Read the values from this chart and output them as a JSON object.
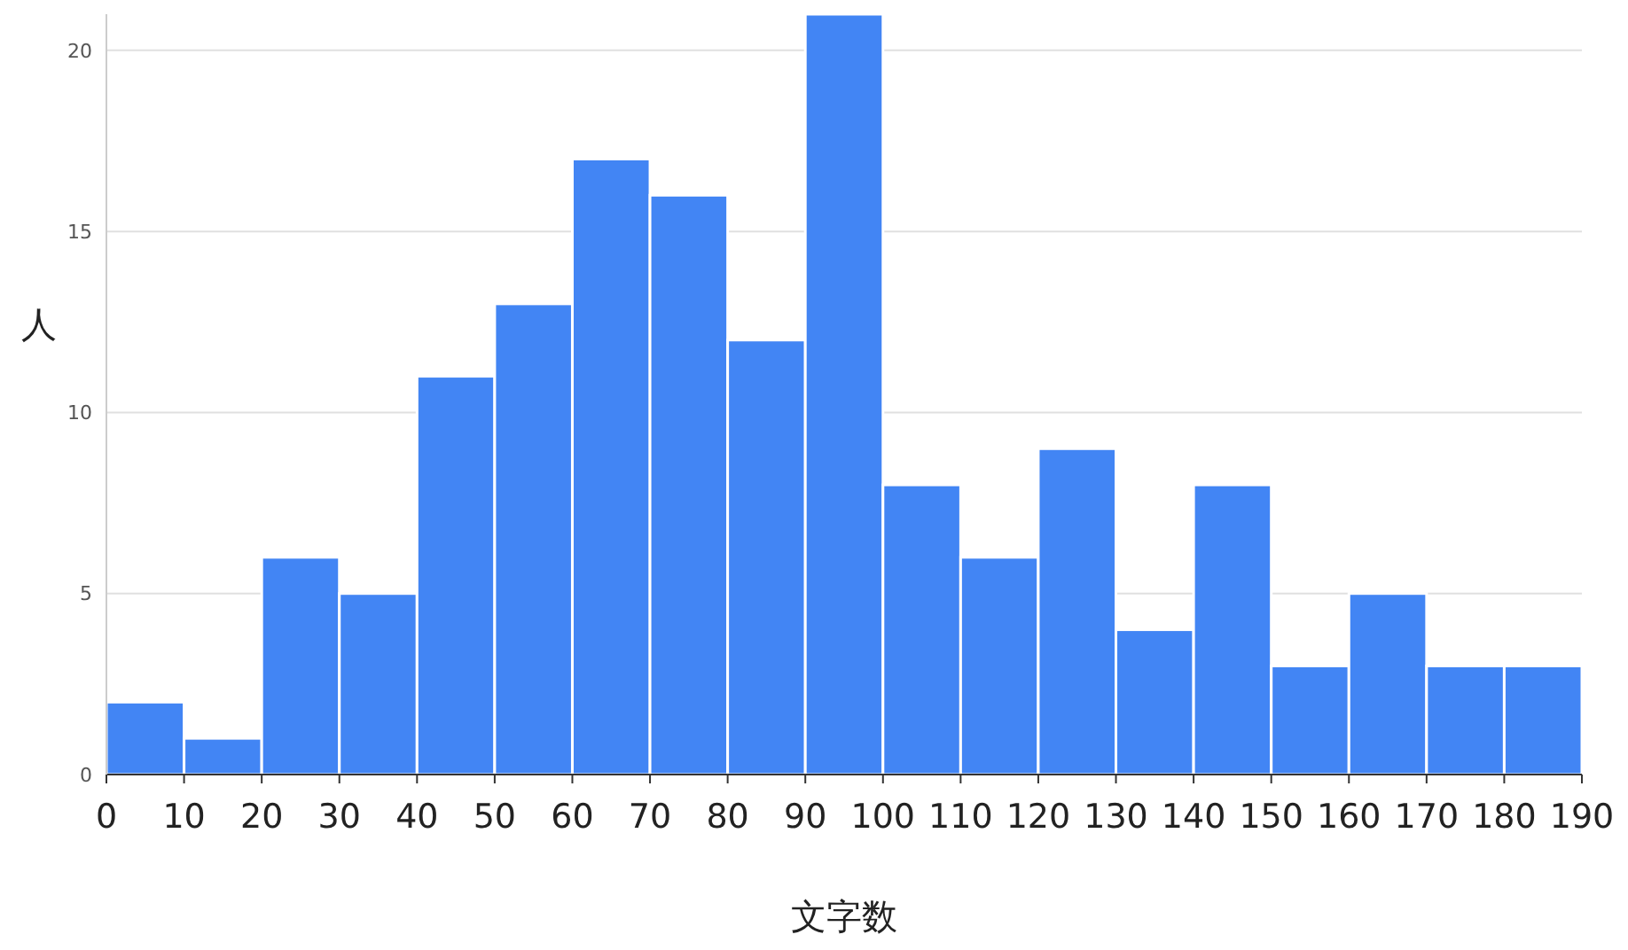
{
  "chart_data": {
    "type": "histogram",
    "xlabel": "文字数",
    "ylabel": "人",
    "bins": [
      0,
      10,
      20,
      30,
      40,
      50,
      60,
      70,
      80,
      90,
      100,
      110,
      120,
      130,
      140,
      150,
      160,
      170,
      180,
      190
    ],
    "values": [
      2,
      1,
      6,
      5,
      11,
      13,
      17,
      16,
      12,
      21,
      8,
      6,
      9,
      4,
      8,
      3,
      5,
      3,
      3
    ],
    "color": "#4285f4",
    "xlim": [
      0,
      190
    ],
    "xticks": [
      0,
      10,
      20,
      30,
      40,
      50,
      60,
      70,
      80,
      90,
      100,
      110,
      120,
      130,
      140,
      150,
      160,
      170,
      180,
      190
    ],
    "ylim": [
      0,
      21
    ],
    "yticks": [
      0,
      5,
      10,
      15,
      20
    ],
    "grid": "y"
  }
}
